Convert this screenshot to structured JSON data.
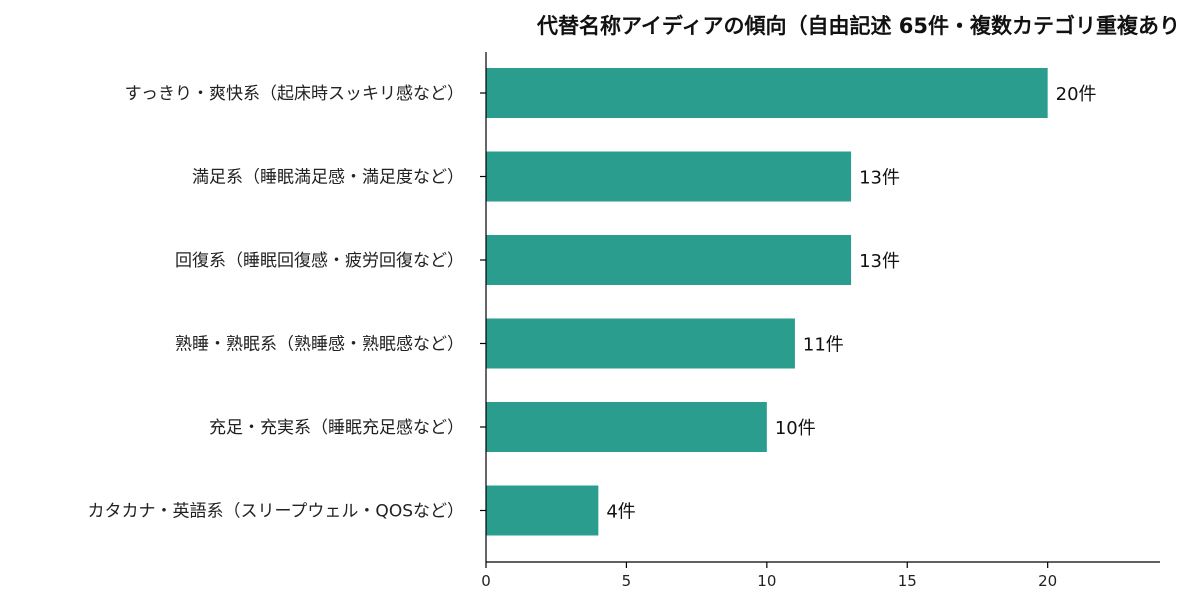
{
  "chart_data": {
    "type": "bar",
    "orientation": "horizontal",
    "title": "代替名称アイディアの傾向（自由記述 65件・複数カテゴリ重複あり",
    "categories": [
      "すっきり・爽快系（起床時スッキリ感など）",
      "満足系（睡眠満足感・満足度など）",
      "回復系（睡眠回復感・疲労回復など）",
      "熟睡・熟眠系（熟睡感・熟眠感など）",
      "充足・充実系（睡眠充足感など）",
      "カタカナ・英語系（スリープウェル・QOSなど）"
    ],
    "values": [
      20,
      13,
      13,
      11,
      10,
      4
    ],
    "data_labels": [
      "20件",
      "13件",
      "13件",
      "11件",
      "10件",
      "4件"
    ],
    "xlabel": "",
    "ylabel": "",
    "xlim": [
      0,
      24
    ],
    "xticks": [
      0,
      5,
      10,
      15,
      20
    ],
    "xtick_labels": [
      "0",
      "5",
      "10",
      "15",
      "20"
    ],
    "bar_color": "#2a9d8f",
    "grid": false,
    "legend": "none"
  }
}
